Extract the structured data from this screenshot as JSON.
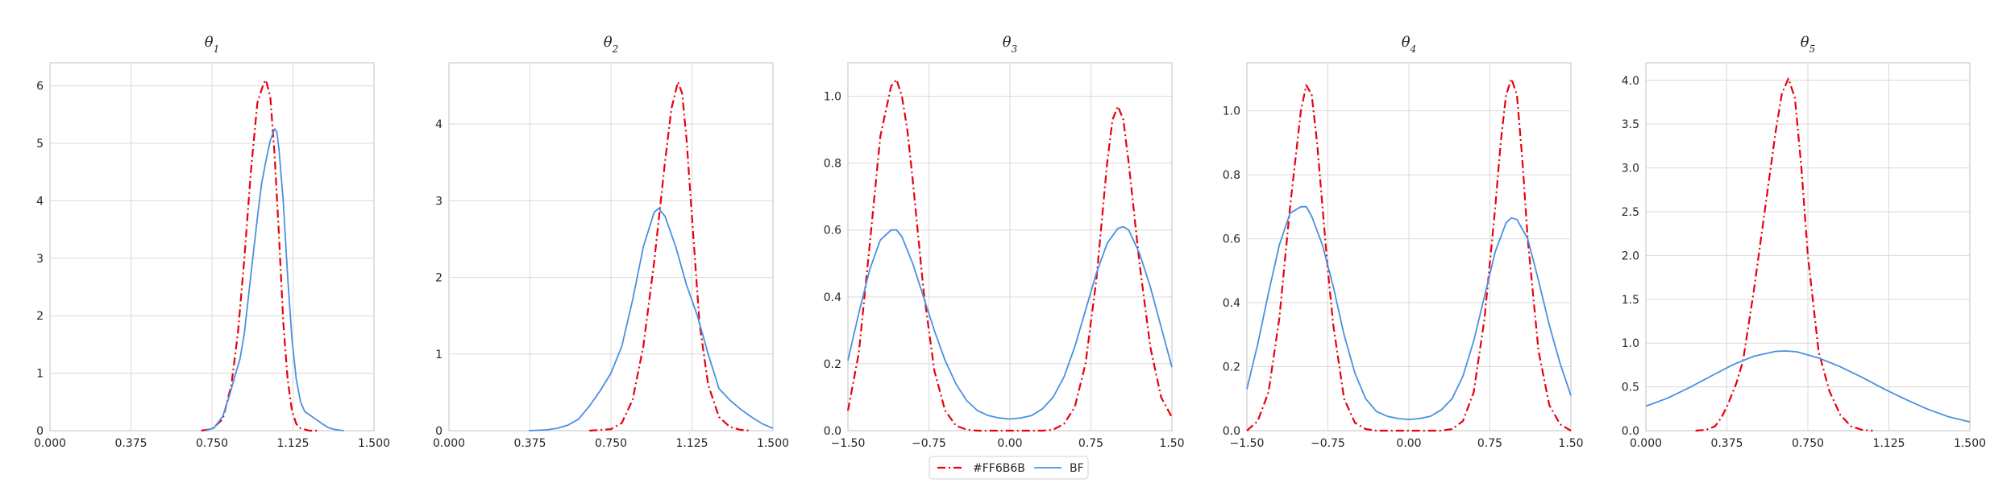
{
  "figure": {
    "grid": true,
    "legend": {
      "placement": "bottom-center",
      "entries": [
        {
          "label": "#FF6B6B",
          "color": "#e8000b",
          "style": "dashdot"
        },
        {
          "label": "BF",
          "color": "#4a90e2",
          "style": "solid"
        }
      ]
    },
    "colors": {
      "series_dashdot": "#e8000b",
      "series_solid": "#4a90e2",
      "grid": "#d9d9d9",
      "axes_edge": "#cccccc"
    }
  },
  "chart_data": [
    {
      "type": "line",
      "title_base": "θ",
      "title_sub": "1",
      "xlim": [
        0.0,
        1.5
      ],
      "ylim": [
        0,
        6.4
      ],
      "xticks": [
        0.0,
        0.375,
        0.75,
        1.125,
        1.5
      ],
      "xtick_labels": [
        "0.000",
        "0.375",
        "0.750",
        "1.125",
        "1.500"
      ],
      "yticks": [
        0,
        1,
        2,
        3,
        4,
        5,
        6
      ],
      "ytick_labels": [
        "0",
        "1",
        "2",
        "3",
        "4",
        "5",
        "6"
      ],
      "series": [
        {
          "style": "dashdot",
          "x": [
            0.7,
            0.75,
            0.8,
            0.84,
            0.87,
            0.9,
            0.93,
            0.96,
            0.99,
            1.0,
            1.02,
            1.04,
            1.06,
            1.08,
            1.1,
            1.12,
            1.14,
            1.16,
            1.2,
            1.25
          ],
          "y": [
            0.0,
            0.03,
            0.2,
            0.8,
            1.7,
            3.0,
            4.5,
            5.7,
            6.05,
            6.1,
            5.8,
            4.8,
            3.4,
            1.9,
            0.9,
            0.35,
            0.12,
            0.04,
            0.0,
            0.0
          ]
        },
        {
          "style": "solid",
          "x": [
            0.72,
            0.76,
            0.8,
            0.83,
            0.86,
            0.88,
            0.9,
            0.93,
            0.96,
            0.98,
            1.0,
            1.02,
            1.04,
            1.05,
            1.06,
            1.08,
            1.1,
            1.12,
            1.14,
            1.16,
            1.18,
            1.2,
            1.23,
            1.26,
            1.29,
            1.32,
            1.36
          ],
          "y": [
            0.0,
            0.05,
            0.25,
            0.6,
            1.0,
            1.25,
            1.7,
            2.7,
            3.7,
            4.3,
            4.7,
            5.05,
            5.25,
            5.2,
            4.9,
            4.0,
            2.7,
            1.6,
            0.9,
            0.5,
            0.33,
            0.28,
            0.2,
            0.12,
            0.05,
            0.02,
            0.0
          ]
        }
      ]
    },
    {
      "type": "line",
      "title_base": "θ",
      "title_sub": "2",
      "xlim": [
        0.0,
        1.5
      ],
      "ylim": [
        0,
        4.8
      ],
      "xticks": [
        0.0,
        0.375,
        0.75,
        1.125,
        1.5
      ],
      "xtick_labels": [
        "0.000",
        "0.375",
        "0.750",
        "1.125",
        "1.500"
      ],
      "yticks": [
        0,
        1,
        2,
        3,
        4
      ],
      "ytick_labels": [
        "0",
        "1",
        "2",
        "3",
        "4"
      ],
      "series": [
        {
          "style": "dashdot",
          "x": [
            0.65,
            0.75,
            0.8,
            0.85,
            0.9,
            0.95,
            1.0,
            1.03,
            1.06,
            1.08,
            1.1,
            1.13,
            1.16,
            1.2,
            1.25,
            1.3,
            1.35,
            1.4
          ],
          "y": [
            0.0,
            0.02,
            0.1,
            0.4,
            1.1,
            2.2,
            3.5,
            4.2,
            4.55,
            4.4,
            3.8,
            2.6,
            1.4,
            0.6,
            0.18,
            0.05,
            0.01,
            0.0
          ]
        },
        {
          "style": "solid",
          "x": [
            0.37,
            0.45,
            0.5,
            0.55,
            0.6,
            0.65,
            0.7,
            0.75,
            0.8,
            0.85,
            0.9,
            0.95,
            0.97,
            1.0,
            1.05,
            1.1,
            1.15,
            1.2,
            1.25,
            1.3,
            1.35,
            1.4,
            1.45,
            1.5
          ],
          "y": [
            0.0,
            0.01,
            0.03,
            0.07,
            0.15,
            0.32,
            0.52,
            0.75,
            1.1,
            1.7,
            2.4,
            2.85,
            2.9,
            2.8,
            2.4,
            1.9,
            1.5,
            1.0,
            0.55,
            0.4,
            0.28,
            0.18,
            0.09,
            0.03
          ]
        }
      ]
    },
    {
      "type": "line",
      "title_base": "θ",
      "title_sub": "3",
      "xlim": [
        -1.5,
        1.5
      ],
      "ylim": [
        0,
        1.1
      ],
      "xticks": [
        -1.5,
        -0.75,
        0.0,
        0.75,
        1.5
      ],
      "xtick_labels": [
        "−1.50",
        "−0.75",
        "0.00",
        "0.75",
        "1.50"
      ],
      "yticks": [
        0.0,
        0.2,
        0.4,
        0.6,
        0.8,
        1.0
      ],
      "ytick_labels": [
        "0.0",
        "0.2",
        "0.4",
        "0.6",
        "0.8",
        "1.0"
      ],
      "series": [
        {
          "style": "dashdot",
          "x": [
            -1.5,
            -1.4,
            -1.3,
            -1.2,
            -1.1,
            -1.05,
            -1.0,
            -0.95,
            -0.9,
            -0.8,
            -0.7,
            -0.6,
            -0.5,
            -0.4,
            -0.3,
            0.0,
            0.3,
            0.4,
            0.5,
            0.6,
            0.7,
            0.8,
            0.9,
            0.95,
            1.0,
            1.05,
            1.1,
            1.2,
            1.3,
            1.4,
            1.5
          ],
          "y": [
            0.06,
            0.23,
            0.55,
            0.88,
            1.03,
            1.05,
            1.0,
            0.9,
            0.75,
            0.42,
            0.18,
            0.06,
            0.015,
            0.003,
            0.0,
            0.0,
            0.0,
            0.003,
            0.02,
            0.07,
            0.2,
            0.45,
            0.8,
            0.93,
            0.97,
            0.93,
            0.8,
            0.5,
            0.25,
            0.1,
            0.04
          ]
        },
        {
          "style": "solid",
          "x": [
            -1.5,
            -1.4,
            -1.3,
            -1.2,
            -1.1,
            -1.05,
            -1.0,
            -0.9,
            -0.8,
            -0.7,
            -0.6,
            -0.5,
            -0.4,
            -0.3,
            -0.2,
            -0.1,
            0.0,
            0.1,
            0.2,
            0.3,
            0.4,
            0.5,
            0.6,
            0.7,
            0.8,
            0.9,
            1.0,
            1.05,
            1.1,
            1.2,
            1.3,
            1.4,
            1.5
          ],
          "y": [
            0.21,
            0.35,
            0.48,
            0.57,
            0.6,
            0.6,
            0.58,
            0.5,
            0.4,
            0.3,
            0.21,
            0.14,
            0.09,
            0.06,
            0.045,
            0.038,
            0.035,
            0.038,
            0.045,
            0.065,
            0.1,
            0.16,
            0.25,
            0.36,
            0.47,
            0.56,
            0.605,
            0.61,
            0.6,
            0.53,
            0.43,
            0.31,
            0.19
          ]
        }
      ]
    },
    {
      "type": "line",
      "title_base": "θ",
      "title_sub": "4",
      "xlim": [
        -1.5,
        1.5
      ],
      "ylim": [
        0,
        1.15
      ],
      "xticks": [
        -1.5,
        -0.75,
        0.0,
        0.75,
        1.5
      ],
      "xtick_labels": [
        "−1.50",
        "−0.75",
        "0.00",
        "0.75",
        "1.50"
      ],
      "yticks": [
        0.0,
        0.2,
        0.4,
        0.6,
        0.8,
        1.0
      ],
      "ytick_labels": [
        "0.0",
        "0.2",
        "0.4",
        "0.6",
        "0.8",
        "1.0"
      ],
      "series": [
        {
          "style": "dashdot",
          "x": [
            -1.5,
            -1.4,
            -1.3,
            -1.2,
            -1.1,
            -1.0,
            -0.95,
            -0.9,
            -0.85,
            -0.8,
            -0.75,
            -0.7,
            -0.6,
            -0.5,
            -0.4,
            -0.3,
            0.0,
            0.3,
            0.4,
            0.5,
            0.6,
            0.7,
            0.8,
            0.85,
            0.9,
            0.95,
            1.0,
            1.05,
            1.1,
            1.2,
            1.3,
            1.4,
            1.5
          ],
          "y": [
            0.0,
            0.03,
            0.12,
            0.35,
            0.7,
            1.0,
            1.08,
            1.05,
            0.9,
            0.7,
            0.5,
            0.33,
            0.1,
            0.025,
            0.005,
            0.0,
            0.0,
            0.0,
            0.005,
            0.03,
            0.12,
            0.35,
            0.7,
            0.9,
            1.05,
            1.1,
            1.05,
            0.85,
            0.6,
            0.25,
            0.08,
            0.02,
            0.0
          ]
        },
        {
          "style": "solid",
          "x": [
            -1.5,
            -1.4,
            -1.3,
            -1.2,
            -1.1,
            -1.0,
            -0.95,
            -0.9,
            -0.8,
            -0.7,
            -0.6,
            -0.5,
            -0.4,
            -0.3,
            -0.2,
            -0.1,
            0.0,
            0.1,
            0.2,
            0.3,
            0.4,
            0.5,
            0.6,
            0.7,
            0.8,
            0.9,
            0.95,
            1.0,
            1.1,
            1.2,
            1.3,
            1.4,
            1.5
          ],
          "y": [
            0.13,
            0.27,
            0.43,
            0.58,
            0.68,
            0.7,
            0.7,
            0.67,
            0.58,
            0.45,
            0.3,
            0.18,
            0.1,
            0.06,
            0.045,
            0.038,
            0.035,
            0.038,
            0.045,
            0.065,
            0.1,
            0.17,
            0.28,
            0.42,
            0.56,
            0.65,
            0.665,
            0.66,
            0.6,
            0.47,
            0.33,
            0.21,
            0.11
          ]
        }
      ]
    },
    {
      "type": "line",
      "title_base": "θ",
      "title_sub": "5",
      "xlim": [
        0.0,
        1.5
      ],
      "ylim": [
        0,
        4.2
      ],
      "xticks": [
        0.0,
        0.375,
        0.75,
        1.125,
        1.5
      ],
      "xtick_labels": [
        "0.000",
        "0.375",
        "0.750",
        "1.125",
        "1.500"
      ],
      "yticks": [
        0.0,
        0.5,
        1.0,
        1.5,
        2.0,
        2.5,
        3.0,
        3.5,
        4.0
      ],
      "ytick_labels": [
        "0.0",
        "0.5",
        "1.0",
        "1.5",
        "2.0",
        "2.5",
        "3.0",
        "3.5",
        "4.0"
      ],
      "series": [
        {
          "style": "dashdot",
          "x": [
            0.23,
            0.28,
            0.32,
            0.35,
            0.38,
            0.42,
            0.45,
            0.5,
            0.55,
            0.6,
            0.63,
            0.66,
            0.69,
            0.72,
            0.75,
            0.8,
            0.85,
            0.9,
            0.95,
            1.0,
            1.05
          ],
          "y": [
            0.0,
            0.01,
            0.05,
            0.15,
            0.3,
            0.55,
            0.8,
            1.6,
            2.5,
            3.4,
            3.85,
            4.02,
            3.8,
            3.0,
            2.0,
            0.9,
            0.45,
            0.18,
            0.05,
            0.01,
            0.0
          ]
        },
        {
          "style": "solid",
          "x": [
            0.0,
            0.1,
            0.2,
            0.3,
            0.4,
            0.5,
            0.6,
            0.65,
            0.7,
            0.8,
            0.9,
            1.0,
            1.1,
            1.2,
            1.3,
            1.4,
            1.5
          ],
          "y": [
            0.28,
            0.37,
            0.49,
            0.62,
            0.75,
            0.85,
            0.905,
            0.91,
            0.9,
            0.83,
            0.73,
            0.61,
            0.48,
            0.36,
            0.25,
            0.16,
            0.1
          ]
        }
      ]
    }
  ]
}
